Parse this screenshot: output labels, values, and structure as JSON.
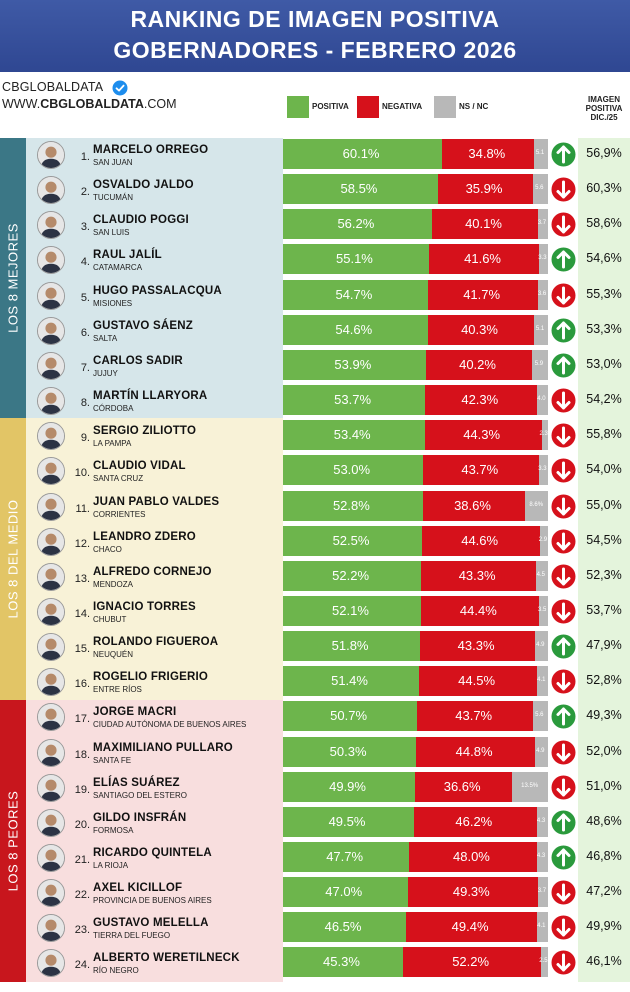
{
  "header": {
    "title_line1": "RANKING DE IMAGEN POSITIVA",
    "title_line2": "GOBERNADORES - FEBRERO 2026"
  },
  "brand": {
    "line1": "CBGLOBALDATA",
    "line2_prefix": "WWW.",
    "line2_bold": "CBGLOBALDATA",
    "line2_suffix": ".COM"
  },
  "colors": {
    "header": "#2f4792",
    "positiva": "#6db54c",
    "negativa": "#d6111b",
    "nsnc": "#b8b8b8",
    "group_mejores": "#3b7786",
    "group_medio": "#e2c566",
    "group_peores": "#c8161d",
    "arrow_up": "#2a9a3c",
    "arrow_down": "#d6111b"
  },
  "legend": {
    "positiva": "POSITIVA",
    "negativa": "NEGATIVA",
    "nsnc": "NS / NC"
  },
  "prev_header": [
    "IMAGEN",
    "POSITIVA",
    "DIC./25"
  ],
  "groups": [
    {
      "label": "LOS 8 MEJORES"
    },
    {
      "label": "LOS 8 DEL MEDIO"
    },
    {
      "label": "LOS 8 PEORES"
    }
  ],
  "chart_data": {
    "type": "bar",
    "orientation": "horizontal-stacked",
    "title": "RANKING DE IMAGEN POSITIVA GOBERNADORES - FEBRERO 2026",
    "series_names": [
      "POSITIVA",
      "NEGATIVA",
      "NS / NC"
    ],
    "rows": [
      {
        "rank": "1.",
        "name": "MARCELO ORREGO",
        "province": "SAN JUAN",
        "positiva": 60.1,
        "negativa": 34.8,
        "nsnc": 5.1,
        "positiva_label": "60.1%",
        "negativa_label": "34.8%",
        "nsnc_label": "5.1",
        "trend": "up",
        "prev": "56,9%"
      },
      {
        "rank": "2.",
        "name": "OSVALDO JALDO",
        "province": "TUCUMÁN",
        "positiva": 58.5,
        "negativa": 35.9,
        "nsnc": 5.6,
        "positiva_label": "58.5%",
        "negativa_label": "35.9%",
        "nsnc_label": "5.6",
        "trend": "down",
        "prev": "60,3%"
      },
      {
        "rank": "3.",
        "name": "CLAUDIO POGGI",
        "province": "SAN LUIS",
        "positiva": 56.2,
        "negativa": 40.1,
        "nsnc": 3.7,
        "positiva_label": "56.2%",
        "negativa_label": "40.1%",
        "nsnc_label": "3.7",
        "trend": "down",
        "prev": "58,6%"
      },
      {
        "rank": "4.",
        "name": "RAUL JALÍL",
        "province": "CATAMARCA",
        "positiva": 55.1,
        "negativa": 41.6,
        "nsnc": 3.3,
        "positiva_label": "55.1%",
        "negativa_label": "41.6%",
        "nsnc_label": "3.3",
        "trend": "up",
        "prev": "54,6%"
      },
      {
        "rank": "5.",
        "name": "HUGO PASSALACQUA",
        "province": "MISIONES",
        "positiva": 54.7,
        "negativa": 41.7,
        "nsnc": 3.6,
        "positiva_label": "54.7%",
        "negativa_label": "41.7%",
        "nsnc_label": "3.6",
        "trend": "down",
        "prev": "55,3%"
      },
      {
        "rank": "6.",
        "name": "GUSTAVO SÁENZ",
        "province": "SALTA",
        "positiva": 54.6,
        "negativa": 40.3,
        "nsnc": 5.1,
        "positiva_label": "54.6%",
        "negativa_label": "40.3%",
        "nsnc_label": "5.1",
        "trend": "up",
        "prev": "53,3%"
      },
      {
        "rank": "7.",
        "name": "CARLOS SADIR",
        "province": "JUJUY",
        "positiva": 53.9,
        "negativa": 40.2,
        "nsnc": 5.9,
        "positiva_label": "53.9%",
        "negativa_label": "40.2%",
        "nsnc_label": "5.9",
        "trend": "up",
        "prev": "53,0%"
      },
      {
        "rank": "8.",
        "name": "MARTÍN LLARYORA",
        "province": "CÓRDOBA",
        "positiva": 53.7,
        "negativa": 42.3,
        "nsnc": 4.0,
        "positiva_label": "53.7%",
        "negativa_label": "42.3%",
        "nsnc_label": "4.0",
        "trend": "down",
        "prev": "54,2%"
      },
      {
        "rank": "9.",
        "name": "SERGIO ZILIOTTO",
        "province": "LA PAMPA",
        "positiva": 53.4,
        "negativa": 44.3,
        "nsnc": 2.3,
        "positiva_label": "53.4%",
        "negativa_label": "44.3%",
        "nsnc_label": "2.3",
        "trend": "down",
        "prev": "55,8%"
      },
      {
        "rank": "10.",
        "name": "CLAUDIO VIDAL",
        "province": "SANTA CRUZ",
        "positiva": 53.0,
        "negativa": 43.7,
        "nsnc": 3.3,
        "positiva_label": "53.0%",
        "negativa_label": "43.7%",
        "nsnc_label": "3.3",
        "trend": "down",
        "prev": "54,0%"
      },
      {
        "rank": "11.",
        "name": "JUAN PABLO VALDES",
        "province": "CORRIENTES",
        "positiva": 52.8,
        "negativa": 38.6,
        "nsnc": 8.6,
        "positiva_label": "52.8%",
        "negativa_label": "38.6%",
        "nsnc_label": "8.6%",
        "trend": "down",
        "prev": "55,0%"
      },
      {
        "rank": "12.",
        "name": "LEANDRO ZDERO",
        "province": "CHACO",
        "positiva": 52.5,
        "negativa": 44.6,
        "nsnc": 2.9,
        "positiva_label": "52.5%",
        "negativa_label": "44.6%",
        "nsnc_label": "2.9",
        "trend": "down",
        "prev": "54,5%"
      },
      {
        "rank": "13.",
        "name": "ALFREDO CORNEJO",
        "province": "MENDOZA",
        "positiva": 52.2,
        "negativa": 43.3,
        "nsnc": 4.5,
        "positiva_label": "52.2%",
        "negativa_label": "43.3%",
        "nsnc_label": "4.5",
        "trend": "down",
        "prev": "52,3%"
      },
      {
        "rank": "14.",
        "name": "IGNACIO TORRES",
        "province": "CHUBUT",
        "positiva": 52.1,
        "negativa": 44.4,
        "nsnc": 3.5,
        "positiva_label": "52.1%",
        "negativa_label": "44.4%",
        "nsnc_label": "3.5",
        "trend": "down",
        "prev": "53,7%"
      },
      {
        "rank": "15.",
        "name": "ROLANDO FIGUEROA",
        "province": "NEUQUÉN",
        "positiva": 51.8,
        "negativa": 43.3,
        "nsnc": 4.9,
        "positiva_label": "51.8%",
        "negativa_label": "43.3%",
        "nsnc_label": "4.9",
        "trend": "up",
        "prev": "47,9%"
      },
      {
        "rank": "16.",
        "name": "ROGELIO FRIGERIO",
        "province": "ENTRE RÍOS",
        "positiva": 51.4,
        "negativa": 44.5,
        "nsnc": 4.1,
        "positiva_label": "51.4%",
        "negativa_label": "44.5%",
        "nsnc_label": "4.1",
        "trend": "down",
        "prev": "52,8%"
      },
      {
        "rank": "17.",
        "name": "JORGE MACRI",
        "province": "CIUDAD AUTÓNOMA DE BUENOS AIRES",
        "positiva": 50.7,
        "negativa": 43.7,
        "nsnc": 5.6,
        "positiva_label": "50.7%",
        "negativa_label": "43.7%",
        "nsnc_label": "5.6",
        "trend": "up",
        "prev": "49,3%"
      },
      {
        "rank": "18.",
        "name": "MAXIMILIANO PULLARO",
        "province": "SANTA FE",
        "positiva": 50.3,
        "negativa": 44.8,
        "nsnc": 4.9,
        "positiva_label": "50.3%",
        "negativa_label": "44.8%",
        "nsnc_label": "4.9",
        "trend": "down",
        "prev": "52,0%"
      },
      {
        "rank": "19.",
        "name": "ELÍAS SUÁREZ",
        "province": "SANTIAGO DEL ESTERO",
        "positiva": 49.9,
        "negativa": 36.6,
        "nsnc": 13.5,
        "positiva_label": "49.9%",
        "negativa_label": "36.6%",
        "nsnc_label": "13.5%",
        "trend": "down",
        "prev": "51,0%"
      },
      {
        "rank": "20.",
        "name": "GILDO INSFRÁN",
        "province": "FORMOSA",
        "positiva": 49.5,
        "negativa": 46.2,
        "nsnc": 4.3,
        "positiva_label": "49.5%",
        "negativa_label": "46.2%",
        "nsnc_label": "4.3",
        "trend": "up",
        "prev": "48,6%"
      },
      {
        "rank": "21.",
        "name": "RICARDO QUINTELA",
        "province": "LA RIOJA",
        "positiva": 47.7,
        "negativa": 48.0,
        "nsnc": 4.3,
        "positiva_label": "47.7%",
        "negativa_label": "48.0%",
        "nsnc_label": "4.3",
        "trend": "up",
        "prev": "46,8%"
      },
      {
        "rank": "22.",
        "name": "AXEL KICILLOF",
        "province": "PROVINCIA DE BUENOS AIRES",
        "positiva": 47.0,
        "negativa": 49.3,
        "nsnc": 3.7,
        "positiva_label": "47.0%",
        "negativa_label": "49.3%",
        "nsnc_label": "3.7",
        "trend": "down",
        "prev": "47,2%"
      },
      {
        "rank": "23.",
        "name": "GUSTAVO MELELLA",
        "province": "TIERRA DEL FUEGO",
        "positiva": 46.5,
        "negativa": 49.4,
        "nsnc": 4.1,
        "positiva_label": "46.5%",
        "negativa_label": "49.4%",
        "nsnc_label": "4.1",
        "trend": "down",
        "prev": "49,9%"
      },
      {
        "rank": "24.",
        "name": "ALBERTO WERETILNECK",
        "province": "RÍO NEGRO",
        "positiva": 45.3,
        "negativa": 52.2,
        "nsnc": 2.5,
        "positiva_label": "45.3%",
        "negativa_label": "52.2%",
        "nsnc_label": "2.5",
        "trend": "down",
        "prev": "46,1%"
      }
    ]
  }
}
